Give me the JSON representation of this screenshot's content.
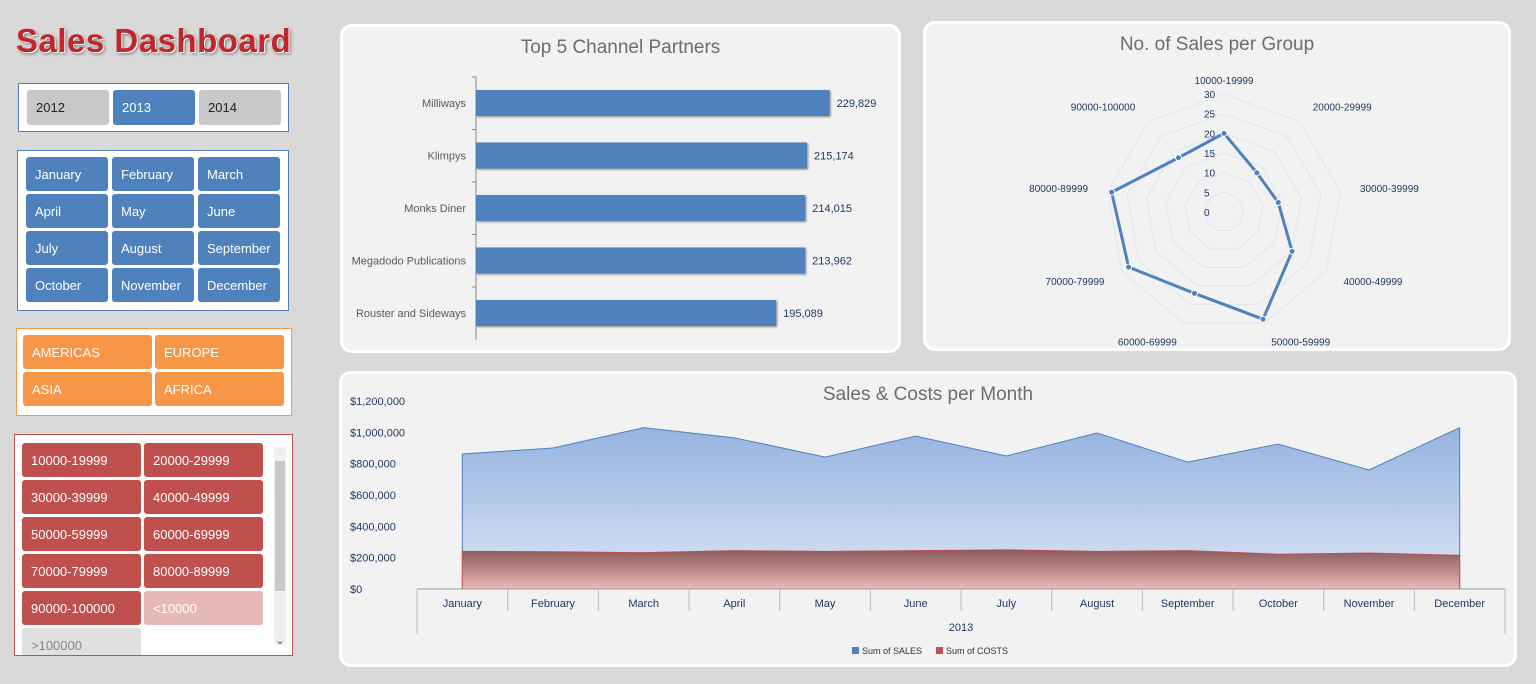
{
  "header": {
    "title": "Sales Dashboard"
  },
  "years": {
    "items": [
      {
        "label": "2012",
        "selected": false
      },
      {
        "label": "2013",
        "selected": true
      },
      {
        "label": "2014",
        "selected": false
      }
    ]
  },
  "months": {
    "items": [
      "January",
      "February",
      "March",
      "April",
      "May",
      "June",
      "July",
      "August",
      "September",
      "October",
      "November",
      "December"
    ]
  },
  "regions": {
    "items": [
      "AMERICAS",
      "EUROPE",
      "ASIA",
      "AFRICA"
    ]
  },
  "groups": {
    "items": [
      {
        "label": "10000-19999",
        "state": "on"
      },
      {
        "label": "20000-29999",
        "state": "on"
      },
      {
        "label": "30000-39999",
        "state": "on"
      },
      {
        "label": "40000-49999",
        "state": "on"
      },
      {
        "label": "50000-59999",
        "state": "on"
      },
      {
        "label": "60000-69999",
        "state": "on"
      },
      {
        "label": "70000-79999",
        "state": "on"
      },
      {
        "label": "80000-89999",
        "state": "on"
      },
      {
        "label": "90000-100000",
        "state": "on"
      },
      {
        "label": "<10000",
        "state": "nodata"
      },
      {
        "label": ">100000",
        "state": "nodata"
      }
    ],
    "scroll_up": "▲",
    "scroll_down": "⌄"
  },
  "colors": {
    "blue": "#4f81bd",
    "red": "#c0504d",
    "orange": "#f79646",
    "title_red": "#c0262a"
  },
  "chart_data": [
    {
      "type": "bar",
      "orientation": "horizontal",
      "title": "Top 5 Channel Partners",
      "categories": [
        "Milliways",
        "Klimpys",
        "Monks Diner",
        "Megadodo Publications",
        "Rouster and Sideways"
      ],
      "values": [
        229829,
        215174,
        214015,
        213962,
        195089
      ],
      "labels": [
        "229,829",
        "215,174",
        "214,015",
        "213,962",
        "195,089"
      ],
      "xlim": [
        0,
        260000
      ],
      "color": "#4f81bd"
    },
    {
      "type": "radar",
      "title": "No. of Sales per Group",
      "categories": [
        "10000-19999",
        "20000-29999",
        "30000-39999",
        "40000-49999",
        "50000-59999",
        "60000-69999",
        "70000-79999",
        "80000-89999",
        "90000-100000"
      ],
      "values": [
        20,
        13,
        14,
        20,
        29,
        22,
        28,
        29,
        18
      ],
      "ticks": [
        "0",
        "5",
        "10",
        "15",
        "20",
        "25",
        "30"
      ],
      "rlim": [
        0,
        30
      ],
      "color": "#4f81bd"
    },
    {
      "type": "area",
      "title": "Sales & Costs per Month",
      "categories": [
        "January",
        "February",
        "March",
        "April",
        "May",
        "June",
        "July",
        "August",
        "September",
        "October",
        "November",
        "December"
      ],
      "group_label": "2013",
      "series": [
        {
          "name": "Sum of SALES",
          "values": [
            862000,
            900000,
            1030000,
            965000,
            842000,
            976000,
            849000,
            996000,
            810000,
            925000,
            760000,
            1030000
          ],
          "color": "#4f81bd"
        },
        {
          "name": "Sum of COSTS",
          "values": [
            240000,
            238000,
            232000,
            245000,
            240000,
            245000,
            250000,
            240000,
            245000,
            222000,
            230000,
            215000
          ],
          "color": "#c0504d"
        }
      ],
      "yticks": [
        "$0",
        "$200,000",
        "$400,000",
        "$600,000",
        "$800,000",
        "$1,000,000",
        "$1,200,000"
      ],
      "ylim": [
        0,
        1200000
      ],
      "legend": "bottom"
    }
  ]
}
